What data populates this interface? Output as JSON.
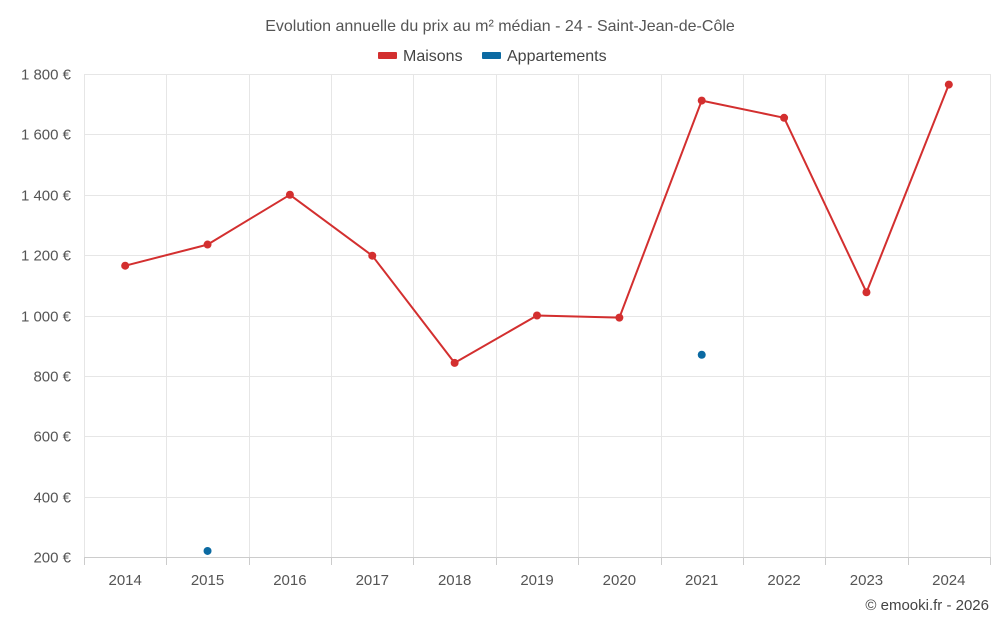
{
  "colors": {
    "maisons": "#d32f2f",
    "appartements": "#0b6aa2"
  },
  "credit": "© emooki.fr - 2026",
  "chart_data": {
    "type": "line",
    "title": "Evolution annuelle du prix au m² médian - 24 - Saint-Jean-de-Côle",
    "xlabel": "",
    "ylabel": "",
    "categories": [
      "2014",
      "2015",
      "2016",
      "2017",
      "2018",
      "2019",
      "2020",
      "2021",
      "2022",
      "2023",
      "2024"
    ],
    "ylim": [
      200,
      1800
    ],
    "yticks": [
      200,
      400,
      600,
      800,
      1000,
      1200,
      1400,
      1600,
      1800
    ],
    "ytick_labels": [
      "200 €",
      "400 €",
      "600 €",
      "800 €",
      "1 000 €",
      "1 200 €",
      "1 400 €",
      "1 600 €",
      "1 800 €"
    ],
    "grid": true,
    "legend_position": "top-center",
    "series": [
      {
        "name": "Maisons",
        "color": "#d32f2f",
        "mode": "line+markers",
        "values": [
          1165,
          1235,
          1400,
          1198,
          843,
          1000,
          993,
          1712,
          1655,
          1077,
          1765
        ]
      },
      {
        "name": "Appartements",
        "color": "#0b6aa2",
        "mode": "markers",
        "values": [
          null,
          220,
          null,
          null,
          null,
          null,
          null,
          870,
          null,
          null,
          null
        ]
      }
    ]
  }
}
